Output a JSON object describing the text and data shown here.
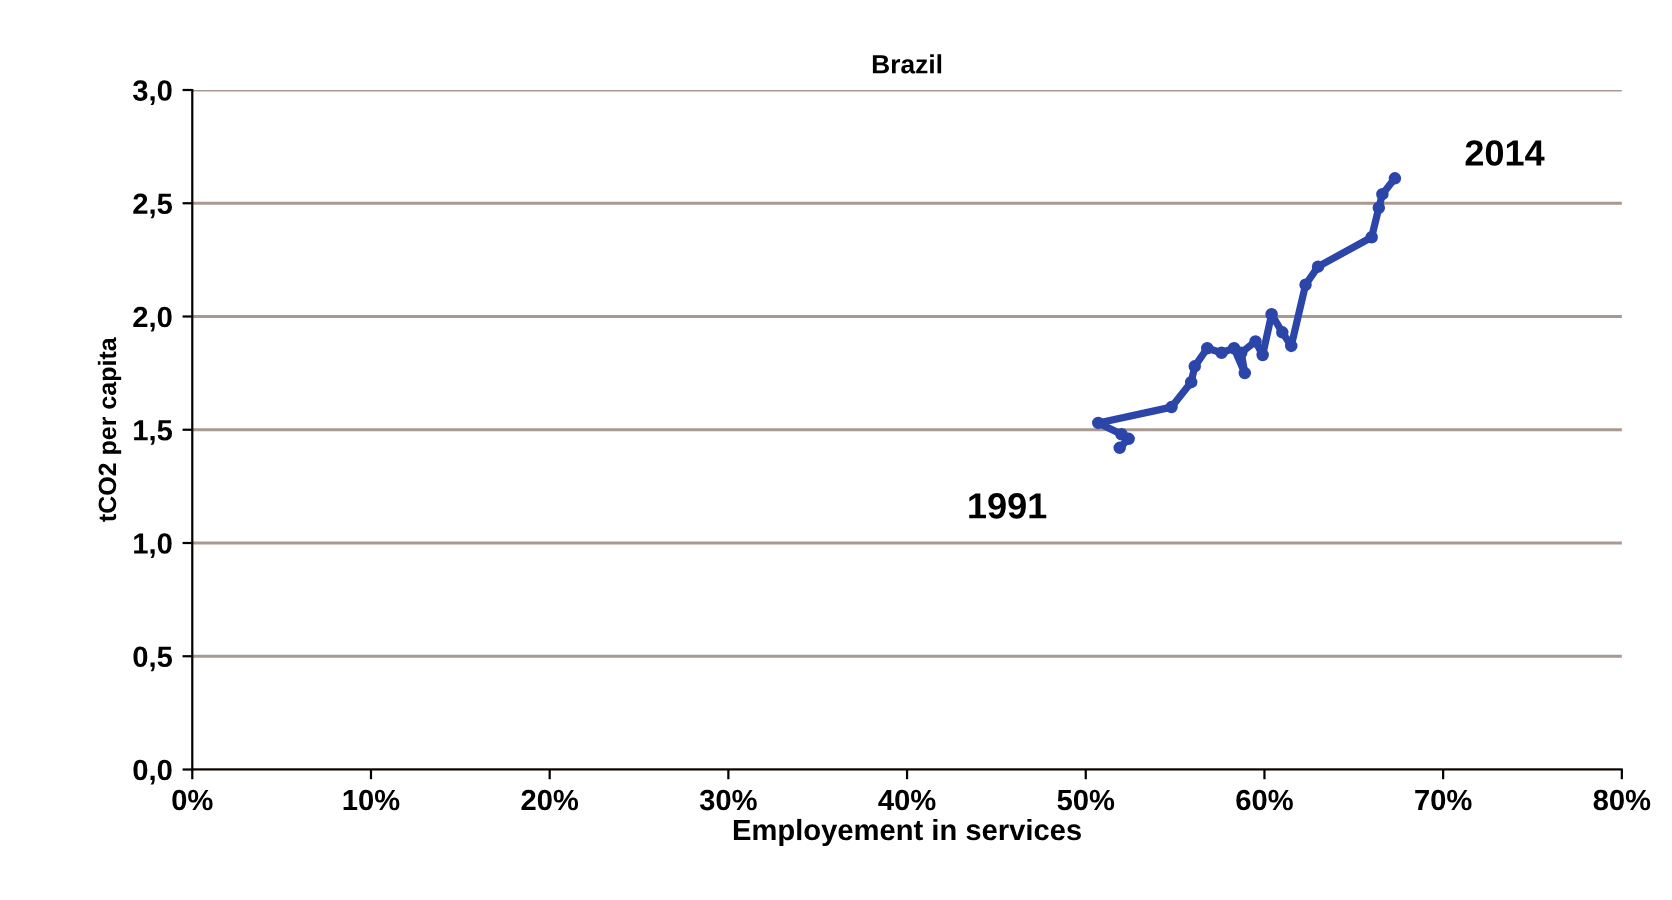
{
  "chart_data": {
    "type": "line",
    "title": "Brazil",
    "xlabel": "Employement in services",
    "ylabel": "tCO2 per capita",
    "xlim": [
      0,
      80
    ],
    "xticks": [
      {
        "value": 0,
        "label": "0%"
      },
      {
        "value": 10,
        "label": "10%"
      },
      {
        "value": 20,
        "label": "20%"
      },
      {
        "value": 30,
        "label": "30%"
      },
      {
        "value": 40,
        "label": "40%"
      },
      {
        "value": 50,
        "label": "50%"
      },
      {
        "value": 60,
        "label": "60%"
      },
      {
        "value": 70,
        "label": "70%"
      },
      {
        "value": 80,
        "label": "80%"
      }
    ],
    "ylim": [
      0,
      3
    ],
    "yticks": [
      {
        "value": 0,
        "label": "0,0"
      },
      {
        "value": 0.5,
        "label": "0,5"
      },
      {
        "value": 1,
        "label": "1,0"
      },
      {
        "value": 1.5,
        "label": "1,5"
      },
      {
        "value": 2,
        "label": "2,0"
      },
      {
        "value": 2.5,
        "label": "2,5"
      },
      {
        "value": 3,
        "label": "3,0"
      }
    ],
    "grid": "y",
    "marker": "circle",
    "line_style": "solid",
    "series": [
      {
        "color": "#2b45a8",
        "x": [
          51.9,
          52.4,
          52.0,
          50.7,
          54.8,
          55.9,
          56.1,
          56.8,
          57.6,
          58.3,
          58.9,
          58.7,
          59.5,
          59.9,
          60.4,
          61.0,
          61.5,
          62.3,
          63.0,
          66.0,
          66.4,
          66.6,
          67.3
        ],
        "values": [
          1.42,
          1.46,
          1.48,
          1.53,
          1.6,
          1.71,
          1.78,
          1.86,
          1.84,
          1.86,
          1.75,
          1.84,
          1.89,
          1.83,
          2.01,
          1.93,
          1.87,
          2.14,
          2.22,
          2.35,
          2.48,
          2.54,
          2.61
        ]
      }
    ],
    "annotations": [
      {
        "text": "1991",
        "x": 51.9,
        "y": 1.42
      },
      {
        "text": "2014",
        "x": 67.3,
        "y": 2.61
      }
    ]
  }
}
